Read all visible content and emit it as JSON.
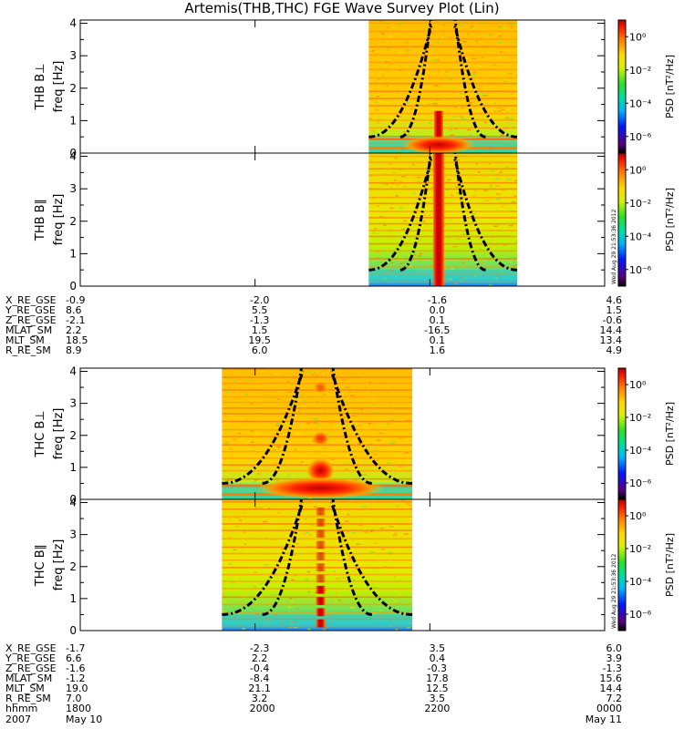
{
  "title": "Artemis(THB,THC) FGE Wave Survey Plot (Lin)",
  "stamp": "Wed Aug 29 21:53:36 2012",
  "chart_data": [
    {
      "type": "heatmap",
      "group": "THB",
      "panels": [
        {
          "ylabel_top": "THB B⊥",
          "ylabel_unit": "freq [Hz]",
          "yticks": [
            "0",
            "1",
            "2",
            "3",
            "4"
          ],
          "ylim": [
            0,
            4.1
          ],
          "data_xrange": [
            2130,
            2300
          ],
          "spike_x": 2210,
          "low_band": true
        },
        {
          "ylabel_top": "THB B∥",
          "ylabel_unit": "freq [Hz]",
          "yticks": [
            "0",
            "1",
            "2",
            "3",
            "4"
          ],
          "ylim": [
            0,
            4.1
          ],
          "data_xrange": [
            2130,
            2300
          ],
          "spike_x": 2210,
          "low_band": false
        }
      ],
      "colorbar": {
        "label": "PSD [nT²/Hz]",
        "ticks": [
          "10⁰",
          "10⁻²",
          "10⁻⁴",
          "10⁻⁶"
        ],
        "tick_values": [
          1,
          0.01,
          0.0001,
          1e-06
        ],
        "range": [
          1e-07,
          10
        ]
      },
      "orbit_labels": [
        "X_RE_GSE",
        "Y_RE_GSE",
        "Z_RE_GSE",
        "MLAT_SM",
        "MLT_SM",
        "R_RE_SM"
      ],
      "orbit_columns": [
        [
          "-0.9",
          "8.6",
          "-2.1",
          "2.2",
          "18.5",
          "8.9"
        ],
        [
          "-2.0",
          "5.5",
          "-1.3",
          "1.5",
          "19.5",
          "6.0"
        ],
        [
          "-1.6",
          "0.0",
          "0.1",
          "-16.5",
          "0.1",
          "1.6"
        ],
        [
          "4.6",
          "1.5",
          "-0.6",
          "14.4",
          "13.4",
          "4.9"
        ]
      ]
    },
    {
      "type": "heatmap",
      "group": "THC",
      "panels": [
        {
          "ylabel_top": "THC B⊥",
          "ylabel_unit": "freq [Hz]",
          "yticks": [
            "0",
            "1",
            "2",
            "3",
            "4"
          ],
          "ylim": [
            0,
            4.1
          ],
          "data_xrange": [
            1962,
            2180
          ],
          "spike_x": 2075,
          "low_band": true
        },
        {
          "ylabel_top": "THC B∥",
          "ylabel_unit": "freq [Hz]",
          "yticks": [
            "0",
            "1",
            "2",
            "3",
            "4"
          ],
          "ylim": [
            0,
            4.1
          ],
          "data_xrange": [
            1962,
            2180
          ],
          "spike_x": 2075,
          "low_band": false
        }
      ],
      "colorbar": {
        "label": "PSD [nT²/Hz]",
        "ticks": [
          "10⁰",
          "10⁻²",
          "10⁻⁴",
          "10⁻⁶"
        ],
        "tick_values": [
          1,
          0.01,
          0.0001,
          1e-06
        ],
        "range": [
          1e-07,
          10
        ]
      },
      "orbit_labels": [
        "X_RE_GSE",
        "Y_RE_GSE",
        "Z_RE_GSE",
        "MLAT_SM",
        "MLT_SM",
        "R_RE_SM"
      ],
      "orbit_columns": [
        [
          "-1.7",
          "6.6",
          "-1.6",
          "-1.2",
          "19.0",
          "7.0"
        ],
        [
          "-2.3",
          "2.2",
          "-0.4",
          "-8.4",
          "21.1",
          "3.2"
        ],
        [
          "3.5",
          "0.4",
          "-0.3",
          "17.8",
          "12.5",
          "3.5"
        ],
        [
          "6.0",
          "3.9",
          "-1.3",
          "15.6",
          "14.4",
          "7.2"
        ]
      ]
    }
  ],
  "time_axis": {
    "label": "hhmm",
    "ticks": [
      "1800",
      "2000",
      "2200",
      "0000"
    ],
    "tick_values_min": [
      1800,
      2000,
      2200,
      2400
    ],
    "xlim": [
      1800,
      2400
    ],
    "date_row": [
      "2007",
      "May 10",
      "May 11"
    ]
  }
}
